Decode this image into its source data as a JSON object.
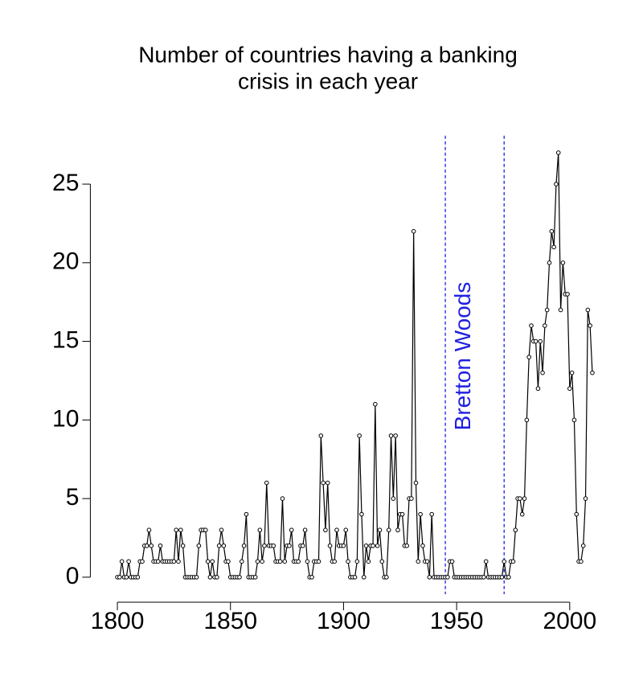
{
  "chart_data": {
    "type": "line",
    "title": [
      "Number of countries having a banking",
      "crisis in each year"
    ],
    "x": [
      1800,
      1801,
      1802,
      1803,
      1804,
      1805,
      1806,
      1807,
      1808,
      1809,
      1810,
      1811,
      1812,
      1813,
      1814,
      1815,
      1816,
      1817,
      1818,
      1819,
      1820,
      1821,
      1822,
      1823,
      1824,
      1825,
      1826,
      1827,
      1828,
      1829,
      1830,
      1831,
      1832,
      1833,
      1834,
      1835,
      1836,
      1837,
      1838,
      1839,
      1840,
      1841,
      1842,
      1843,
      1844,
      1845,
      1846,
      1847,
      1848,
      1849,
      1850,
      1851,
      1852,
      1853,
      1854,
      1855,
      1856,
      1857,
      1858,
      1859,
      1860,
      1861,
      1862,
      1863,
      1864,
      1865,
      1866,
      1867,
      1868,
      1869,
      1870,
      1871,
      1872,
      1873,
      1874,
      1875,
      1876,
      1877,
      1878,
      1879,
      1880,
      1881,
      1882,
      1883,
      1884,
      1885,
      1886,
      1887,
      1888,
      1889,
      1890,
      1891,
      1892,
      1893,
      1894,
      1895,
      1896,
      1897,
      1898,
      1899,
      1900,
      1901,
      1902,
      1903,
      1904,
      1905,
      1906,
      1907,
      1908,
      1909,
      1910,
      1911,
      1912,
      1913,
      1914,
      1915,
      1916,
      1917,
      1918,
      1919,
      1920,
      1921,
      1922,
      1923,
      1924,
      1925,
      1926,
      1927,
      1928,
      1929,
      1930,
      1931,
      1932,
      1933,
      1934,
      1935,
      1936,
      1937,
      1938,
      1939,
      1940,
      1941,
      1942,
      1943,
      1944,
      1945,
      1946,
      1947,
      1948,
      1949,
      1950,
      1951,
      1952,
      1953,
      1954,
      1955,
      1956,
      1957,
      1958,
      1959,
      1960,
      1961,
      1962,
      1963,
      1964,
      1965,
      1966,
      1967,
      1968,
      1969,
      1970,
      1971,
      1972,
      1973,
      1974,
      1975,
      1976,
      1977,
      1978,
      1979,
      1980,
      1981,
      1982,
      1983,
      1984,
      1985,
      1986,
      1987,
      1988,
      1989,
      1990,
      1991,
      1992,
      1993,
      1994,
      1995,
      1996,
      1997,
      1998,
      1999,
      2000,
      2001,
      2002,
      2003,
      2004,
      2005,
      2006,
      2007,
      2008,
      2009,
      2010
    ],
    "values": [
      0,
      0,
      1,
      0,
      0,
      1,
      0,
      0,
      0,
      0,
      1,
      1,
      2,
      2,
      3,
      2,
      1,
      1,
      1,
      2,
      1,
      1,
      1,
      1,
      1,
      1,
      3,
      1,
      3,
      2,
      0,
      0,
      0,
      0,
      0,
      0,
      2,
      3,
      3,
      3,
      1,
      0,
      1,
      0,
      0,
      2,
      3,
      2,
      1,
      1,
      0,
      0,
      0,
      0,
      0,
      1,
      2,
      4,
      0,
      0,
      0,
      0,
      1,
      3,
      1,
      2,
      6,
      2,
      2,
      2,
      1,
      1,
      1,
      5,
      1,
      2,
      2,
      3,
      1,
      1,
      1,
      2,
      2,
      3,
      1,
      0,
      0,
      1,
      1,
      1,
      9,
      6,
      3,
      6,
      2,
      1,
      1,
      3,
      2,
      2,
      2,
      3,
      1,
      0,
      0,
      0,
      1,
      9,
      4,
      0,
      2,
      1,
      2,
      2,
      11,
      2,
      3,
      1,
      0,
      0,
      3,
      9,
      5,
      9,
      3,
      4,
      4,
      2,
      2,
      5,
      5,
      22,
      6,
      1,
      4,
      2,
      1,
      1,
      0,
      4,
      0,
      0,
      0,
      0,
      0,
      0,
      0,
      1,
      1,
      0,
      0,
      0,
      0,
      0,
      0,
      0,
      0,
      0,
      0,
      0,
      0,
      0,
      0,
      1,
      0,
      0,
      0,
      0,
      0,
      0,
      0,
      1,
      0,
      0,
      1,
      1,
      3,
      5,
      5,
      4,
      5,
      10,
      14,
      16,
      15,
      15,
      12,
      15,
      13,
      16,
      17,
      20,
      22,
      21,
      25,
      27,
      17,
      20,
      18,
      18,
      12,
      13,
      10,
      4,
      1,
      1,
      2,
      5,
      17,
      16,
      13
    ],
    "color": "#000000",
    "xlim": [
      1791.6,
      2018.4
    ],
    "xticks": [
      1800,
      1850,
      1900,
      1950,
      2000
    ],
    "ylim": [
      -1.08,
      28.08
    ],
    "yticks": [
      0,
      5,
      10,
      15,
      20,
      25
    ],
    "vlines": [
      1945,
      1971
    ],
    "vline_color": "#2020e0",
    "annotation": "Bretton Woods"
  }
}
